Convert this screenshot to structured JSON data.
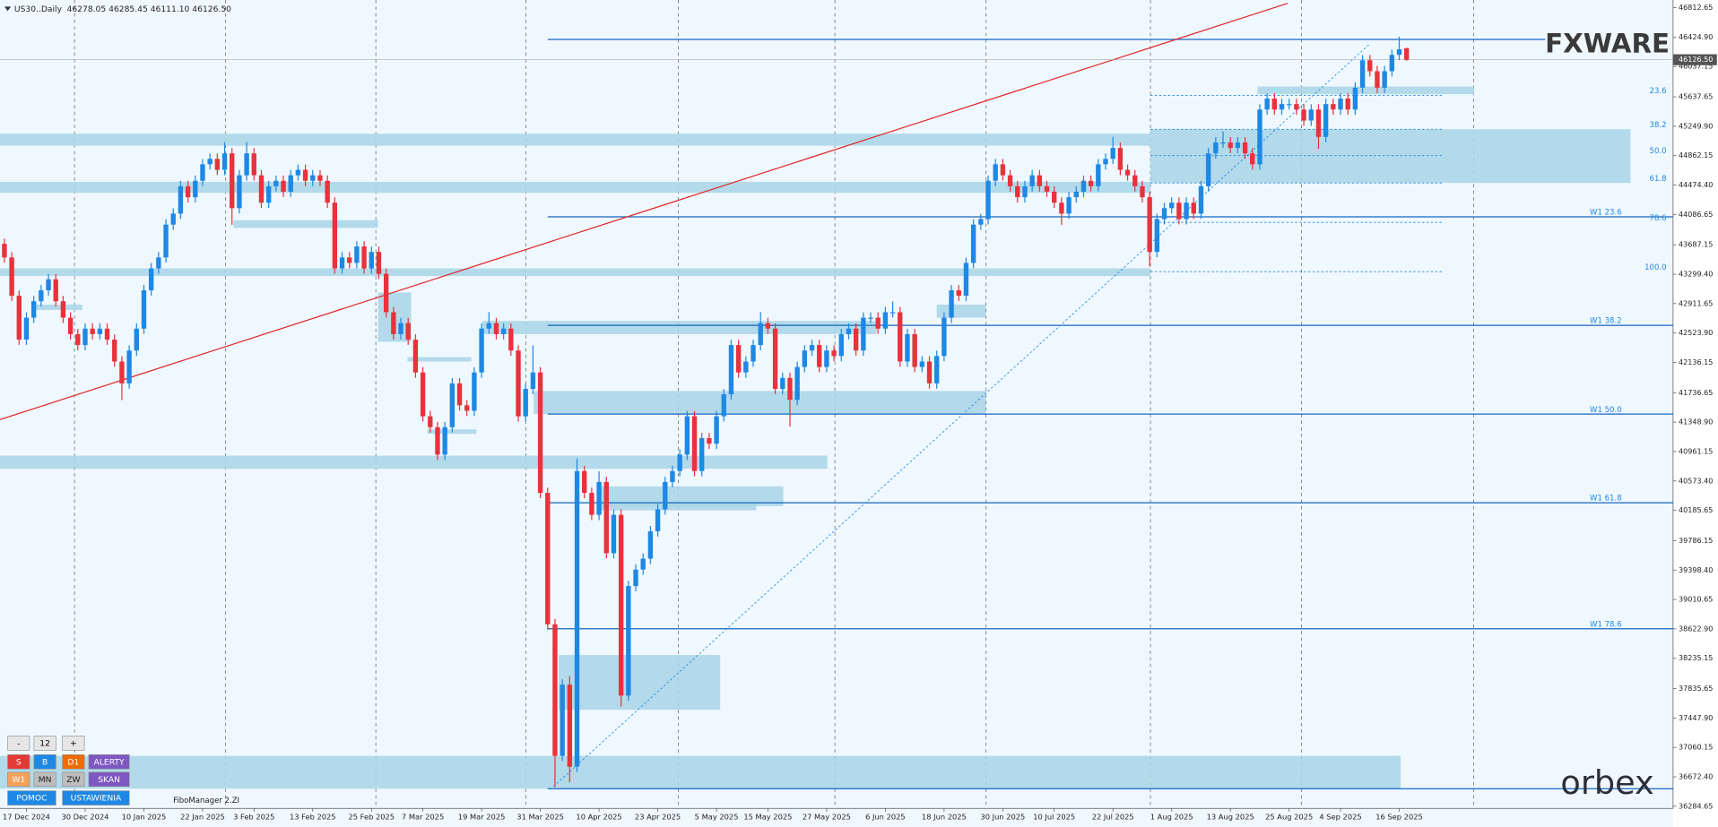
{
  "header": {
    "symbol": "US30..Daily",
    "ohlc": "46278.05 46285.45 46111.10 46126.50"
  },
  "chart_data": {
    "type": "candlestick",
    "up_color": "#1e88e5",
    "down_color": "#e8323c",
    "open": [
      43700,
      43520,
      43015,
      42437,
      42726,
      42943,
      43087,
      43232,
      42943,
      42726,
      42509,
      42365,
      42582,
      42509,
      42582,
      42437,
      42148,
      41860,
      42293,
      42582,
      43087,
      43376,
      43520,
      43953,
      44098,
      44459,
      44314,
      44531,
      44748,
      44820,
      44675,
      44892,
      44170,
      44603,
      44892,
      44603,
      44242,
      44459,
      44531,
      44387,
      44603,
      44675,
      44531,
      44603,
      44531,
      44242,
      43376,
      43520,
      43448,
      43665,
      43376,
      43593,
      43304,
      42798,
      42509,
      42654,
      42437,
      42004,
      41426,
      41282,
      40921,
      41282,
      41860,
      41571,
      41499,
      42004,
      42582,
      42654,
      42509,
      42582,
      42293,
      41426,
      41787,
      42004,
      40416,
      38683,
      36950,
      37888,
      36806,
      40704,
      40416,
      40127,
      40560,
      39621,
      40127,
      37744,
      39188,
      39405,
      39549,
      39910,
      40199,
      40560,
      40704,
      40921,
      41426,
      40704,
      41138,
      41065,
      41426,
      41715,
      42365,
      42004,
      42148,
      42365,
      42654,
      42582,
      41787,
      41932,
      41643,
      42076,
      42293,
      42365,
      42076,
      42293,
      42221,
      42509,
      42582,
      42293,
      42726,
      42726,
      42582,
      42798,
      42798,
      42148,
      42509,
      42076,
      42148,
      41860,
      42221,
      42726,
      43087,
      43015,
      43448,
      43953,
      44026,
      44531,
      44748,
      44603,
      44459,
      44314,
      44459,
      44603,
      44459,
      44387,
      44242,
      44098,
      44314,
      44387,
      44531,
      44459,
      44748,
      44820,
      44964,
      44675,
      44603,
      44459,
      44314,
      43593,
      44026,
      44170,
      44242,
      44026,
      44242,
      44098,
      44459,
      44892,
      45036,
      45036,
      44964,
      45036,
      44892,
      44748,
      45470,
      45614,
      45470,
      45542,
      45542,
      45470,
      45325,
      45470,
      45109,
      45542,
      45470,
      45614,
      45470,
      45758,
      46119,
      45975,
      45758,
      45975,
      46191,
      46278.05
    ],
    "high": [
      43770,
      43590,
      43085,
      42796,
      43013,
      43157,
      43302,
      43302,
      43013,
      42796,
      42579,
      42652,
      42652,
      42652,
      42652,
      42507,
      42218,
      42363,
      42652,
      43157,
      43446,
      43590,
      44023,
      44168,
      44529,
      44529,
      44601,
      44818,
      44890,
      44890,
      45040,
      44962,
      44673,
      45040,
      44962,
      44673,
      44529,
      44601,
      44601,
      44673,
      44745,
      44745,
      44673,
      44673,
      44601,
      44312,
      43590,
      43590,
      43735,
      43735,
      43663,
      43663,
      43374,
      42868,
      42724,
      42724,
      42507,
      42074,
      41496,
      41352,
      41352,
      41930,
      41930,
      41641,
      42074,
      42652,
      42800,
      42724,
      42652,
      42652,
      42363,
      41857,
      42360,
      42074,
      40486,
      38753,
      37958,
      38000,
      40870,
      40774,
      40486,
      40700,
      40630,
      40197,
      40197,
      39258,
      39475,
      39619,
      39980,
      40269,
      40630,
      40774,
      40991,
      41496,
      41496,
      41208,
      41208,
      41496,
      41785,
      42435,
      42435,
      42218,
      42435,
      42800,
      42724,
      42652,
      42002,
      42002,
      42146,
      42363,
      42435,
      42435,
      42363,
      42363,
      42579,
      42652,
      42652,
      42796,
      42796,
      42796,
      42868,
      42940,
      42868,
      42579,
      42579,
      42218,
      42218,
      42291,
      42796,
      43157,
      43157,
      43518,
      44023,
      44096,
      44601,
      44818,
      44818,
      44673,
      44529,
      44529,
      44673,
      44673,
      44529,
      44457,
      44312,
      44384,
      44457,
      44601,
      44601,
      44818,
      44890,
      45110,
      45034,
      44745,
      44673,
      44529,
      44384,
      44096,
      44240,
      44312,
      44312,
      44312,
      44312,
      44529,
      44962,
      45106,
      45180,
      45106,
      45106,
      45106,
      44962,
      45540,
      45684,
      45684,
      45612,
      45612,
      45612,
      45540,
      45540,
      45540,
      45612,
      45612,
      45684,
      45684,
      45828,
      46189,
      46189,
      46045,
      46045,
      46261,
      46430,
      46285.45
    ],
    "low": [
      43450,
      42945,
      42367,
      42367,
      42656,
      42873,
      43017,
      42873,
      42656,
      42439,
      42295,
      42295,
      42439,
      42439,
      42367,
      42078,
      41640,
      41790,
      42223,
      42512,
      43017,
      43306,
      43450,
      43883,
      44028,
      44244,
      44244,
      44461,
      44678,
      44605,
      44605,
      43950,
      44100,
      44533,
      44533,
      44172,
      44172,
      44389,
      44317,
      44317,
      44533,
      44461,
      44461,
      44461,
      44172,
      43306,
      43306,
      43378,
      43378,
      43306,
      43306,
      43234,
      42728,
      42439,
      42439,
      42367,
      41934,
      41356,
      41212,
      40851,
      40851,
      41212,
      41501,
      41429,
      41429,
      41934,
      42512,
      42439,
      42439,
      42223,
      41356,
      41356,
      41717,
      40346,
      38613,
      36540,
      36880,
      36600,
      36736,
      40346,
      40057,
      40057,
      39551,
      39551,
      37600,
      37674,
      39118,
      39335,
      39479,
      39840,
      40129,
      40490,
      40634,
      40851,
      40634,
      40634,
      40995,
      40995,
      41356,
      41645,
      41934,
      41934,
      42078,
      42295,
      42512,
      41717,
      41717,
      41290,
      41573,
      42006,
      42223,
      42006,
      42006,
      42151,
      42151,
      42439,
      42223,
      42223,
      42656,
      42512,
      42512,
      42728,
      42078,
      42078,
      42006,
      42006,
      41790,
      41790,
      42151,
      42656,
      42945,
      42945,
      43378,
      43883,
      43956,
      44461,
      44533,
      44389,
      44244,
      44244,
      44389,
      44389,
      44317,
      44172,
      43950,
      44028,
      44244,
      44317,
      44389,
      44389,
      44678,
      44750,
      44605,
      44533,
      44389,
      44244,
      43400,
      43523,
      43956,
      44100,
      43956,
      43956,
      44028,
      44028,
      44389,
      44822,
      44966,
      44894,
      44894,
      44822,
      44678,
      44678,
      45400,
      45400,
      45400,
      45472,
      45400,
      45255,
      45255,
      44950,
      45039,
      45400,
      45400,
      45400,
      45400,
      45688,
      45905,
      45688,
      45688,
      45905,
      46121,
      46111.1
    ],
    "close": [
      43520,
      43015,
      42437,
      42726,
      42943,
      43087,
      43232,
      42943,
      42726,
      42509,
      42365,
      42582,
      42509,
      42582,
      42437,
      42148,
      41860,
      42293,
      42582,
      43087,
      43376,
      43520,
      43953,
      44098,
      44459,
      44314,
      44531,
      44748,
      44820,
      44675,
      44892,
      44170,
      44603,
      44892,
      44603,
      44242,
      44459,
      44531,
      44387,
      44603,
      44675,
      44531,
      44603,
      44531,
      44242,
      43376,
      43520,
      43448,
      43665,
      43376,
      43593,
      43304,
      42798,
      42509,
      42654,
      42437,
      42004,
      41426,
      41282,
      40921,
      41282,
      41860,
      41571,
      41499,
      42004,
      42582,
      42654,
      42509,
      42582,
      42293,
      41426,
      41787,
      42004,
      40416,
      38683,
      36950,
      37888,
      36806,
      40704,
      40416,
      40127,
      40560,
      39621,
      40127,
      37744,
      39188,
      39405,
      39549,
      39910,
      40199,
      40560,
      40704,
      40921,
      41426,
      40704,
      41138,
      41065,
      41426,
      41715,
      42365,
      42004,
      42148,
      42365,
      42654,
      42582,
      41787,
      41932,
      41643,
      42076,
      42293,
      42365,
      42076,
      42293,
      42221,
      42509,
      42582,
      42293,
      42726,
      42726,
      42582,
      42798,
      42798,
      42148,
      42509,
      42076,
      42148,
      41860,
      42221,
      42726,
      43087,
      43015,
      43448,
      43953,
      44026,
      44531,
      44748,
      44603,
      44459,
      44314,
      44459,
      44603,
      44459,
      44387,
      44242,
      44098,
      44314,
      44387,
      44531,
      44459,
      44748,
      44820,
      44964,
      44675,
      44603,
      44459,
      44314,
      43593,
      44026,
      44170,
      44242,
      44026,
      44242,
      44098,
      44459,
      44892,
      45036,
      45036,
      44964,
      45036,
      44892,
      44748,
      45470,
      45614,
      45470,
      45542,
      45542,
      45470,
      45325,
      45470,
      45109,
      45542,
      45470,
      45614,
      45470,
      45758,
      46119,
      45975,
      45758,
      45975,
      46191,
      46264,
      46126.5
    ],
    "xlim": [
      -0.6,
      227.3
    ],
    "xticks": [
      {
        "value": 3,
        "label": "17 Dec 2024"
      },
      {
        "value": 11,
        "label": "30 Dec 2024"
      },
      {
        "value": 19,
        "label": "10 Jan 2025"
      },
      {
        "value": 27,
        "label": "22 Jan 2025"
      },
      {
        "value": 34,
        "label": "3 Feb 2025"
      },
      {
        "value": 42,
        "label": "13 Feb 2025"
      },
      {
        "value": 50,
        "label": "25 Feb 2025"
      },
      {
        "value": 57,
        "label": "7 Mar 2025"
      },
      {
        "value": 65,
        "label": "19 Mar 2025"
      },
      {
        "value": 73,
        "label": "31 Mar 2025"
      },
      {
        "value": 81,
        "label": "10 Apr 2025"
      },
      {
        "value": 89,
        "label": "23 Apr 2025"
      },
      {
        "value": 97,
        "label": "5 May 2025"
      },
      {
        "value": 104,
        "label": "15 May 2025"
      },
      {
        "value": 112,
        "label": "27 May 2025"
      },
      {
        "value": 120,
        "label": "6 Jun 2025"
      },
      {
        "value": 128,
        "label": "18 Jun 2025"
      },
      {
        "value": 136,
        "label": "30 Jun 2025"
      },
      {
        "value": 143,
        "label": "10 Jul 2025"
      },
      {
        "value": 151,
        "label": "22 Jul 2025"
      },
      {
        "value": 159,
        "label": "1 Aug 2025"
      },
      {
        "value": 167,
        "label": "13 Aug 2025"
      },
      {
        "value": 175,
        "label": "25 Aug 2025"
      },
      {
        "value": 182,
        "label": "4 Sep 2025"
      },
      {
        "value": 190,
        "label": "16 Sep 2025"
      }
    ],
    "ylim": [
      36257,
      46914
    ],
    "yticks": [
      46812.65,
      {
        "value": 46424.9,
        "label": "46424.90"
      },
      46037.15,
      45637.65,
      {
        "value": 45249.9,
        "label": "45249.90"
      },
      44862.15,
      {
        "value": 44474.4,
        "label": "44474.40"
      },
      44086.65,
      43687.15,
      {
        "value": 43299.4,
        "label": "43299.40"
      },
      42911.65,
      {
        "value": 42523.9,
        "label": "42523.90"
      },
      42136.15,
      41736.65,
      {
        "value": 41348.9,
        "label": "41348.90"
      },
      40961.15,
      {
        "value": 40573.4,
        "label": "40573.40"
      },
      40185.65,
      39786.15,
      {
        "value": 39398.4,
        "label": "39398.40"
      },
      39010.65,
      {
        "value": 38622.9,
        "label": "38622.90"
      },
      38235.15,
      37835.65,
      {
        "value": 37447.9,
        "label": "37447.90"
      },
      37060.15,
      {
        "value": 36672.4,
        "label": "36672.40"
      },
      36284.65
    ],
    "grid": false,
    "last_price": {
      "value": 46126.5,
      "label": "46126.50"
    },
    "zone_color": "#a8d5e6",
    "zones": [
      {
        "from": -1,
        "to": 156.1,
        "top": 45152,
        "bottom": 44993
      },
      {
        "from": -1,
        "to": 156.1,
        "top": 44517,
        "bottom": 44372
      },
      {
        "from": -1,
        "to": 156.1,
        "top": 43376,
        "bottom": 43275
      },
      {
        "from": 31.2,
        "to": 50.9,
        "top": 44011,
        "bottom": 43910
      },
      {
        "from": 50.9,
        "to": 55.4,
        "top": 43058,
        "bottom": 42408
      },
      {
        "from": 54.9,
        "to": 63.6,
        "top": 42206,
        "bottom": 42148
      },
      {
        "from": 65.1,
        "to": 118.8,
        "top": 42683,
        "bottom": 42509
      },
      {
        "from": 127,
        "to": 133.7,
        "top": 42899,
        "bottom": 42726
      },
      {
        "from": 72.1,
        "to": 133.7,
        "top": 41759,
        "bottom": 41456
      },
      {
        "from": -1,
        "to": 112.1,
        "top": 40907,
        "bottom": 40733
      },
      {
        "from": 80.7,
        "to": 106.1,
        "top": 40502,
        "bottom": 40242
      },
      {
        "from": 80.7,
        "to": 102.4,
        "top": 40271,
        "bottom": 40185
      },
      {
        "from": 75.5,
        "to": 97.5,
        "top": 38279,
        "bottom": 37557
      },
      {
        "from": -1,
        "to": 190.2,
        "top": 36950,
        "bottom": 36517
      },
      {
        "from": 156.1,
        "to": 221.5,
        "top": 45210,
        "bottom": 44502
      },
      {
        "from": 170.7,
        "to": 200.2,
        "top": 45773,
        "bottom": 45672
      },
      {
        "from": 57.6,
        "to": 64.3,
        "top": 41253,
        "bottom": 41195
      },
      {
        "from": 3.9,
        "to": 10.6,
        "top": 42899,
        "bottom": 42827
      }
    ],
    "level_color": "#1565c0",
    "levels": [
      {
        "value": 44055,
        "label": "W1 23.6",
        "from": 74
      },
      {
        "value": 42625,
        "label": "W1 38.2",
        "from": 74
      },
      {
        "value": 41455,
        "label": "W1 50.0",
        "from": 74
      },
      {
        "value": 40286,
        "label": "W1 61.8",
        "from": 74
      },
      {
        "value": 38625,
        "label": "W1 78.6",
        "from": 74
      }
    ],
    "hlines": [
      {
        "value": 46394,
        "from": 74,
        "to": 209.9
      },
      {
        "value": 36517,
        "from": 74,
        "to": 227.3
      }
    ],
    "fibo": {
      "from": 156.1,
      "to": 196.1,
      "levels": [
        {
          "value": 45657,
          "label": "23.6"
        },
        {
          "value": 45210,
          "label": "38.2"
        },
        {
          "value": 44863,
          "label": "50.0"
        },
        {
          "value": 44502,
          "label": "61.8"
        },
        {
          "value": 43982,
          "label": "78.6"
        },
        {
          "value": 43333,
          "label": "100.0"
        }
      ]
    },
    "trendline": {
      "x": [
        -0.6,
        174.8
      ],
      "y": [
        41383,
        46870
      ],
      "color": "#e02828"
    },
    "channel": {
      "x": [
        74.8,
        186
      ],
      "y": [
        36546,
        46336
      ],
      "color": "#1e88e5"
    }
  },
  "controls": {
    "rows": [
      [
        "-",
        "12",
        "+"
      ],
      [
        "S",
        "B",
        "D1",
        "ALERTY"
      ],
      [
        "W1",
        "MN",
        "ZW",
        "SKAN"
      ],
      [
        "POMOC",
        "USTAWIENIA"
      ]
    ],
    "footer": "FiboManager 2.ZI"
  },
  "logos": {
    "top": "FXWARE",
    "bottom": "orbex"
  }
}
